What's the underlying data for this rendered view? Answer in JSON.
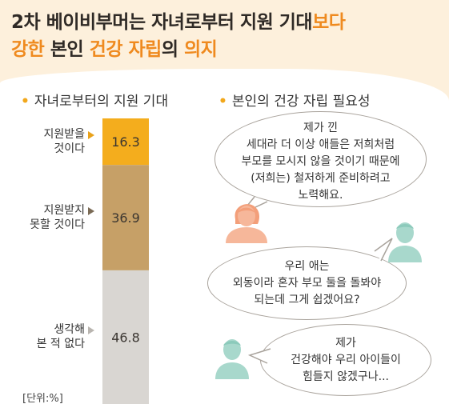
{
  "title": {
    "line1_part1": "2차 베이비부머는 자녀로부터 지원 기대",
    "line1_part2": "보다",
    "line2_part1": "강한",
    "line2_part2": " 본인 ",
    "line2_part3": "건강 자립",
    "line2_part4": "의 ",
    "line2_part5": "의지"
  },
  "legend": {
    "left": "자녀로부터의 지원 기대",
    "right": "본인의 건강 자립  필요성"
  },
  "unit": "[단위:%]",
  "chart_data": {
    "type": "bar",
    "stacked": true,
    "orientation": "vertical",
    "title": "자녀로부터의 지원 기대",
    "unit": "%",
    "categories": [
      {
        "label_lines": [
          "지원받을",
          "것이다"
        ],
        "value": 16.3,
        "color": "#f4ad1d"
      },
      {
        "label_lines": [
          "지원받지",
          "못할 것이다"
        ],
        "value": 36.9,
        "color": "#c6a067"
      },
      {
        "label_lines": [
          "생각해",
          "본 적 없다"
        ],
        "value": 46.8,
        "color": "#d9d6d2"
      }
    ]
  },
  "quotes": [
    {
      "lines": [
        "제가 낀",
        "세대라 더 이상 애들은 저희처럼",
        "부모를 모시지 않을 것이기 때문에",
        "(저희는) 철저하게 준비하려고",
        "노력해요."
      ]
    },
    {
      "lines": [
        "우리 애는",
        "외동이라 혼자 부모 둘을 돌봐야",
        "되는데 그게 쉽겠어요?"
      ]
    },
    {
      "lines": [
        "제가",
        "건강해야 우리 아이들이",
        "힘들지 않겠구나..."
      ]
    }
  ],
  "colors": {
    "accent_orange": "#ef8a1f",
    "header_bg": "#fdf0dc",
    "person_female": "#f6b79a",
    "person_male": "#a8d8cc"
  }
}
